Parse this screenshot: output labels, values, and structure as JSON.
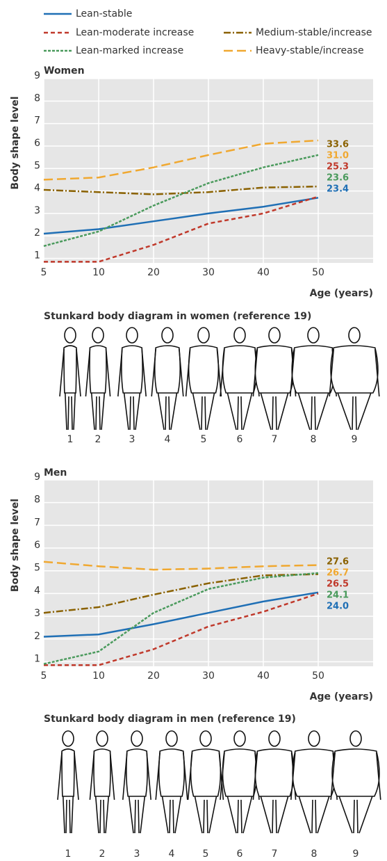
{
  "chart_data": [
    {
      "type": "line",
      "title": "Women",
      "y_label": "Body shape level",
      "x_label": "Age (years)",
      "categories": [
        "5",
        "10",
        "20",
        "30",
        "40",
        "50"
      ],
      "ylim": [
        0.8,
        9
      ],
      "yticks": [
        1,
        2,
        3,
        4,
        5,
        6,
        7,
        8,
        9
      ],
      "grid": true,
      "series": [
        {
          "name": "Lean-stable",
          "color": "#1f6fb5",
          "dash": "solid",
          "values": [
            2.1,
            2.3,
            2.65,
            3.0,
            3.3,
            3.7
          ],
          "label": "23.4"
        },
        {
          "name": "Lean-moderate increase",
          "color": "#c0392b",
          "dash": "dashed",
          "values": [
            0.85,
            0.85,
            1.6,
            2.55,
            3.0,
            3.75
          ],
          "label": "25.3"
        },
        {
          "name": "Medium-stable/increase",
          "color": "#8a6100",
          "dash": "dashdot",
          "values": [
            4.05,
            3.95,
            3.85,
            3.95,
            4.15,
            4.2
          ],
          "label": "33.6"
        },
        {
          "name": "Lean-marked increase",
          "color": "#4a9a5c",
          "dash": "dotted",
          "values": [
            1.55,
            2.2,
            3.35,
            4.35,
            5.05,
            5.6
          ],
          "label": "23.6"
        },
        {
          "name": "Heavy-stable/increase",
          "color": "#f0a830",
          "dash": "longdash",
          "values": [
            4.5,
            4.6,
            5.05,
            5.6,
            6.1,
            6.25
          ],
          "label": "31.0"
        }
      ]
    },
    {
      "type": "line",
      "title": "Men",
      "y_label": "Body shape level",
      "x_label": "Age (years)",
      "categories": [
        "5",
        "10",
        "20",
        "30",
        "40",
        "50"
      ],
      "ylim": [
        0.8,
        9
      ],
      "yticks": [
        1,
        2,
        3,
        4,
        5,
        6,
        7,
        8,
        9
      ],
      "grid": true,
      "series": [
        {
          "color": "#1f6fb5",
          "dash": "solid",
          "values": [
            2.1,
            2.2,
            2.65,
            3.15,
            3.65,
            4.05
          ],
          "label": "24.0"
        },
        {
          "color": "#c0392b",
          "dash": "dashed",
          "values": [
            0.85,
            0.85,
            1.55,
            2.55,
            3.2,
            4.0
          ],
          "label": "26.5"
        },
        {
          "color": "#8a6100",
          "dash": "dashdot",
          "values": [
            3.15,
            3.4,
            3.95,
            4.45,
            4.8,
            4.85
          ],
          "label": "27.6"
        },
        {
          "color": "#4a9a5c",
          "dash": "dotted",
          "values": [
            0.9,
            1.45,
            3.15,
            4.2,
            4.7,
            4.9
          ],
          "label": "24.1"
        },
        {
          "color": "#f0a830",
          "dash": "longdash",
          "values": [
            5.4,
            5.2,
            5.05,
            5.1,
            5.2,
            5.25
          ],
          "label": "26.7"
        }
      ]
    }
  ],
  "figures": [
    {
      "title": "Stunkard body diagram in women (reference 19)",
      "labels": [
        "1",
        "2",
        "3",
        "4",
        "5",
        "6",
        "7",
        "8",
        "9"
      ]
    },
    {
      "title": "Stunkard body diagram in men (reference 19)",
      "labels": [
        "1",
        "2",
        "3",
        "4",
        "5",
        "6",
        "7",
        "8",
        "9"
      ]
    }
  ]
}
